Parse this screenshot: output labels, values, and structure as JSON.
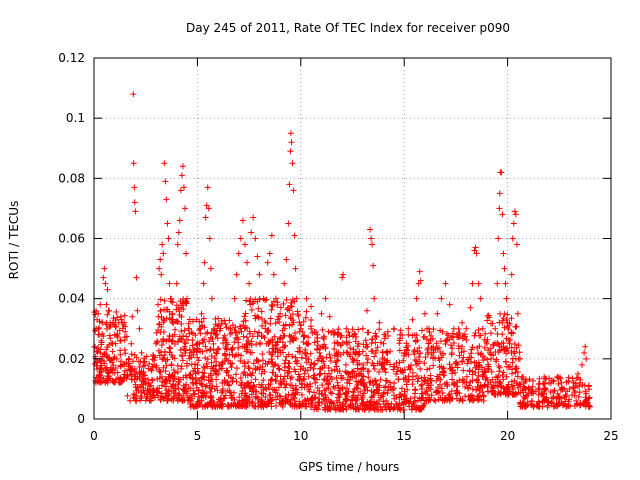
{
  "chart_data": {
    "type": "scatter",
    "title": "Day 245 of 2011, Rate Of TEC Index for receiver p090",
    "xlabel": "GPS time / hours",
    "ylabel": "ROTI / TECUs",
    "xlim": [
      0,
      25
    ],
    "ylim": [
      0,
      0.12
    ],
    "xticks": [
      0,
      5,
      10,
      15,
      20,
      25
    ],
    "xtick_labels": [
      "0",
      "5",
      "10",
      "15",
      "20",
      "25"
    ],
    "yticks": [
      0,
      0.02,
      0.04,
      0.06,
      0.08,
      0.1,
      0.12
    ],
    "ytick_labels": [
      "0",
      "0.02",
      "0.04",
      "0.06",
      "0.08",
      "0.1",
      "0.12"
    ],
    "grid": true,
    "marker": "+",
    "series": [
      {
        "color": "#ff0000",
        "points": [
          [
            0.05,
            0.024
          ],
          [
            0.1,
            0.03
          ],
          [
            0.15,
            0.033
          ],
          [
            0.2,
            0.035
          ],
          [
            0.25,
            0.028
          ],
          [
            0.3,
            0.038
          ],
          [
            0.35,
            0.026
          ],
          [
            0.4,
            0.032
          ],
          [
            0.45,
            0.047
          ],
          [
            0.5,
            0.05
          ],
          [
            0.55,
            0.045
          ],
          [
            0.6,
            0.038
          ],
          [
            0.65,
            0.043
          ],
          [
            0.7,
            0.036
          ],
          [
            0.75,
            0.02
          ],
          [
            0.8,
            0.031
          ],
          [
            0.9,
            0.025
          ],
          [
            1.0,
            0.028
          ],
          [
            1.1,
            0.02
          ],
          [
            1.2,
            0.032
          ],
          [
            1.3,
            0.026
          ],
          [
            1.4,
            0.018
          ],
          [
            1.5,
            0.016
          ],
          [
            1.6,
            0.014
          ],
          [
            1.7,
            0.02
          ],
          [
            1.8,
            0.025
          ],
          [
            1.85,
            0.034
          ],
          [
            1.9,
            0.108
          ],
          [
            1.92,
            0.085
          ],
          [
            1.95,
            0.077
          ],
          [
            1.97,
            0.072
          ],
          [
            2.0,
            0.069
          ],
          [
            2.05,
            0.047
          ],
          [
            2.1,
            0.036
          ],
          [
            2.2,
            0.03
          ],
          [
            2.3,
            0.022
          ],
          [
            2.4,
            0.015
          ],
          [
            2.5,
            0.012
          ],
          [
            2.6,
            0.01
          ],
          [
            2.7,
            0.011
          ],
          [
            2.8,
            0.013
          ],
          [
            2.9,
            0.018
          ],
          [
            3.0,
            0.025
          ],
          [
            3.1,
            0.038
          ],
          [
            3.15,
            0.05
          ],
          [
            3.2,
            0.053
          ],
          [
            3.25,
            0.048
          ],
          [
            3.3,
            0.058
          ],
          [
            3.35,
            0.055
          ],
          [
            3.4,
            0.085
          ],
          [
            3.45,
            0.079
          ],
          [
            3.5,
            0.073
          ],
          [
            3.55,
            0.065
          ],
          [
            3.6,
            0.06
          ],
          [
            3.65,
            0.045
          ],
          [
            3.7,
            0.04
          ],
          [
            3.8,
            0.035
          ],
          [
            3.9,
            0.028
          ],
          [
            4.0,
            0.045
          ],
          [
            4.05,
            0.058
          ],
          [
            4.1,
            0.062
          ],
          [
            4.15,
            0.066
          ],
          [
            4.2,
            0.076
          ],
          [
            4.25,
            0.081
          ],
          [
            4.3,
            0.084
          ],
          [
            4.35,
            0.077
          ],
          [
            4.4,
            0.07
          ],
          [
            4.45,
            0.055
          ],
          [
            4.5,
            0.04
          ],
          [
            4.6,
            0.03
          ],
          [
            4.7,
            0.022
          ],
          [
            4.8,
            0.016
          ],
          [
            4.9,
            0.012
          ],
          [
            5.0,
            0.018
          ],
          [
            5.1,
            0.025
          ],
          [
            5.2,
            0.035
          ],
          [
            5.3,
            0.045
          ],
          [
            5.35,
            0.052
          ],
          [
            5.4,
            0.067
          ],
          [
            5.45,
            0.071
          ],
          [
            5.5,
            0.077
          ],
          [
            5.55,
            0.07
          ],
          [
            5.6,
            0.06
          ],
          [
            5.65,
            0.05
          ],
          [
            5.7,
            0.04
          ],
          [
            5.8,
            0.03
          ],
          [
            5.9,
            0.022
          ],
          [
            6.0,
            0.015
          ],
          [
            6.2,
            0.012
          ],
          [
            6.4,
            0.02
          ],
          [
            6.6,
            0.03
          ],
          [
            6.8,
            0.04
          ],
          [
            6.9,
            0.048
          ],
          [
            7.0,
            0.055
          ],
          [
            7.1,
            0.06
          ],
          [
            7.2,
            0.066
          ],
          [
            7.3,
            0.058
          ],
          [
            7.4,
            0.052
          ],
          [
            7.5,
            0.045
          ],
          [
            7.6,
            0.062
          ],
          [
            7.7,
            0.067
          ],
          [
            7.8,
            0.06
          ],
          [
            7.9,
            0.054
          ],
          [
            8.0,
            0.048
          ],
          [
            8.2,
            0.04
          ],
          [
            8.4,
            0.052
          ],
          [
            8.5,
            0.055
          ],
          [
            8.6,
            0.061
          ],
          [
            8.7,
            0.048
          ],
          [
            8.8,
            0.04
          ],
          [
            9.0,
            0.035
          ],
          [
            9.2,
            0.045
          ],
          [
            9.3,
            0.053
          ],
          [
            9.4,
            0.065
          ],
          [
            9.45,
            0.078
          ],
          [
            9.5,
            0.089
          ],
          [
            9.52,
            0.095
          ],
          [
            9.55,
            0.092
          ],
          [
            9.6,
            0.085
          ],
          [
            9.65,
            0.076
          ],
          [
            9.7,
            0.061
          ],
          [
            9.75,
            0.05
          ],
          [
            9.8,
            0.04
          ],
          [
            10.0,
            0.03
          ],
          [
            10.2,
            0.022
          ],
          [
            10.5,
            0.03
          ],
          [
            10.8,
            0.028
          ],
          [
            11.0,
            0.035
          ],
          [
            11.2,
            0.04
          ],
          [
            11.4,
            0.034
          ],
          [
            11.6,
            0.028
          ],
          [
            11.8,
            0.025
          ],
          [
            12.0,
            0.047
          ],
          [
            12.05,
            0.048
          ],
          [
            12.2,
            0.03
          ],
          [
            12.5,
            0.02
          ],
          [
            12.8,
            0.025
          ],
          [
            13.0,
            0.03
          ],
          [
            13.2,
            0.036
          ],
          [
            13.35,
            0.063
          ],
          [
            13.4,
            0.06
          ],
          [
            13.45,
            0.058
          ],
          [
            13.5,
            0.051
          ],
          [
            13.55,
            0.04
          ],
          [
            13.8,
            0.032
          ],
          [
            14.0,
            0.025
          ],
          [
            14.2,
            0.022
          ],
          [
            14.5,
            0.03
          ],
          [
            14.8,
            0.028
          ],
          [
            15.0,
            0.022
          ],
          [
            15.2,
            0.028
          ],
          [
            15.4,
            0.033
          ],
          [
            15.6,
            0.04
          ],
          [
            15.7,
            0.045
          ],
          [
            15.75,
            0.049
          ],
          [
            15.8,
            0.046
          ],
          [
            16.0,
            0.035
          ],
          [
            16.2,
            0.03
          ],
          [
            16.4,
            0.024
          ],
          [
            16.6,
            0.035
          ],
          [
            16.8,
            0.04
          ],
          [
            17.0,
            0.045
          ],
          [
            17.2,
            0.038
          ],
          [
            17.4,
            0.03
          ],
          [
            17.6,
            0.028
          ],
          [
            17.8,
            0.032
          ],
          [
            18.0,
            0.03
          ],
          [
            18.2,
            0.037
          ],
          [
            18.3,
            0.045
          ],
          [
            18.4,
            0.056
          ],
          [
            18.45,
            0.057
          ],
          [
            18.5,
            0.055
          ],
          [
            18.6,
            0.045
          ],
          [
            18.7,
            0.04
          ],
          [
            18.8,
            0.03
          ],
          [
            19.0,
            0.025
          ],
          [
            19.2,
            0.02
          ],
          [
            19.4,
            0.03
          ],
          [
            19.5,
            0.045
          ],
          [
            19.55,
            0.06
          ],
          [
            19.6,
            0.07
          ],
          [
            19.62,
            0.075
          ],
          [
            19.65,
            0.082
          ],
          [
            19.7,
            0.082
          ],
          [
            19.75,
            0.068
          ],
          [
            19.8,
            0.055
          ],
          [
            19.85,
            0.05
          ],
          [
            19.9,
            0.045
          ],
          [
            19.95,
            0.04
          ],
          [
            20.0,
            0.032
          ],
          [
            20.1,
            0.025
          ],
          [
            20.2,
            0.048
          ],
          [
            20.25,
            0.06
          ],
          [
            20.3,
            0.065
          ],
          [
            20.35,
            0.069
          ],
          [
            20.4,
            0.068
          ],
          [
            20.45,
            0.058
          ],
          [
            20.5,
            0.035
          ],
          [
            20.6,
            0.02
          ],
          [
            20.7,
            0.014
          ],
          [
            20.8,
            0.012
          ],
          [
            21.0,
            0.01
          ],
          [
            21.2,
            0.009
          ],
          [
            21.5,
            0.008
          ],
          [
            21.8,
            0.01
          ],
          [
            22.0,
            0.012
          ],
          [
            22.2,
            0.009
          ],
          [
            22.4,
            0.014
          ],
          [
            22.6,
            0.012
          ],
          [
            22.8,
            0.008
          ],
          [
            23.0,
            0.01
          ],
          [
            23.2,
            0.012
          ],
          [
            23.4,
            0.015
          ],
          [
            23.5,
            0.012
          ],
          [
            23.6,
            0.018
          ],
          [
            23.7,
            0.022
          ],
          [
            23.75,
            0.024
          ],
          [
            23.8,
            0.02
          ]
        ],
        "bands": [
          {
            "x": [
              0,
              1.6
            ],
            "ymin": 0.012,
            "ymax": 0.036,
            "count": 160
          },
          {
            "x": [
              1.6,
              3.0
            ],
            "ymin": 0.006,
            "ymax": 0.022,
            "count": 110
          },
          {
            "x": [
              3.0,
              4.6
            ],
            "ymin": 0.006,
            "ymax": 0.04,
            "count": 220
          },
          {
            "x": [
              4.6,
              7.0
            ],
            "ymin": 0.004,
            "ymax": 0.034,
            "count": 320
          },
          {
            "x": [
              7.0,
              10.5
            ],
            "ymin": 0.004,
            "ymax": 0.04,
            "count": 480
          },
          {
            "x": [
              10.5,
              13.0
            ],
            "ymin": 0.003,
            "ymax": 0.03,
            "count": 300
          },
          {
            "x": [
              13.0,
              16.0
            ],
            "ymin": 0.003,
            "ymax": 0.03,
            "count": 330
          },
          {
            "x": [
              16.0,
              19.0
            ],
            "ymin": 0.006,
            "ymax": 0.03,
            "count": 280
          },
          {
            "x": [
              19.0,
              20.6
            ],
            "ymin": 0.008,
            "ymax": 0.035,
            "count": 170
          },
          {
            "x": [
              20.6,
              24.0
            ],
            "ymin": 0.004,
            "ymax": 0.014,
            "count": 200
          }
        ]
      }
    ]
  }
}
